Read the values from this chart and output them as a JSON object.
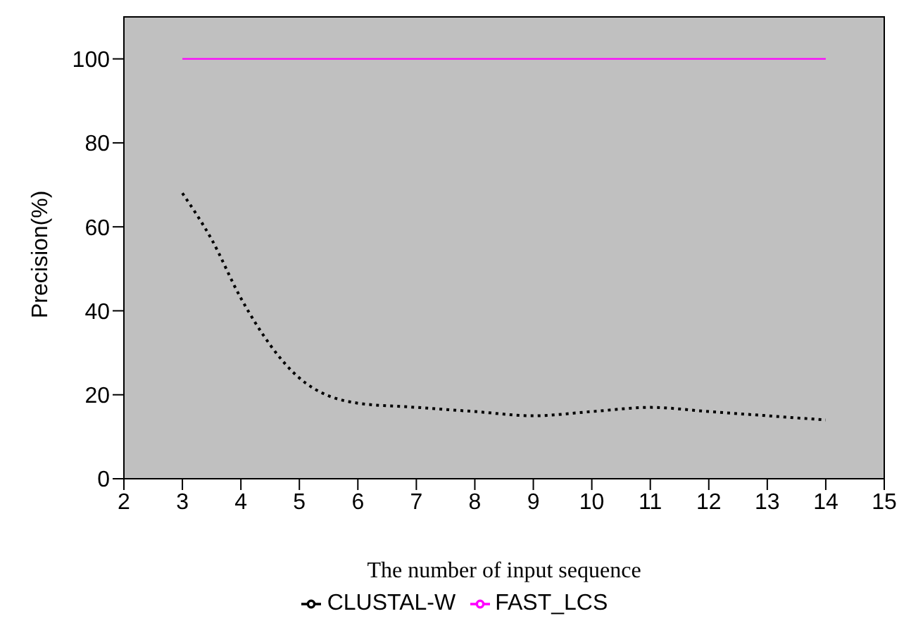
{
  "chart_data": {
    "type": "line",
    "xlabel": "The number of input sequence",
    "ylabel": "Precision(%)",
    "xlim": [
      2,
      15
    ],
    "xticks": [
      2,
      3,
      4,
      5,
      6,
      7,
      8,
      9,
      10,
      11,
      12,
      13,
      14,
      15
    ],
    "ylim": [
      0,
      110
    ],
    "yticks": [
      0,
      20,
      40,
      60,
      80,
      100
    ],
    "legend": "bottom",
    "marker": "none",
    "series": [
      {
        "name": "FAST_LCS",
        "color": "#ff00ff",
        "line_style": "solid",
        "x": [
          3,
          4,
          5,
          6,
          7,
          8,
          9,
          10,
          11,
          12,
          13,
          14
        ],
        "values": [
          100,
          100,
          100,
          100,
          100,
          100,
          100,
          100,
          100,
          100,
          100,
          100
        ]
      },
      {
        "name": "CLUSTAL-W",
        "color": "#000000",
        "line_style": "dotted",
        "x": [
          3,
          3.5,
          4,
          5,
          6,
          7,
          8,
          9,
          10,
          11,
          12,
          13,
          14
        ],
        "values": [
          68,
          57,
          43,
          24,
          18,
          17,
          16,
          15,
          16,
          17,
          16,
          15,
          14
        ]
      }
    ]
  }
}
